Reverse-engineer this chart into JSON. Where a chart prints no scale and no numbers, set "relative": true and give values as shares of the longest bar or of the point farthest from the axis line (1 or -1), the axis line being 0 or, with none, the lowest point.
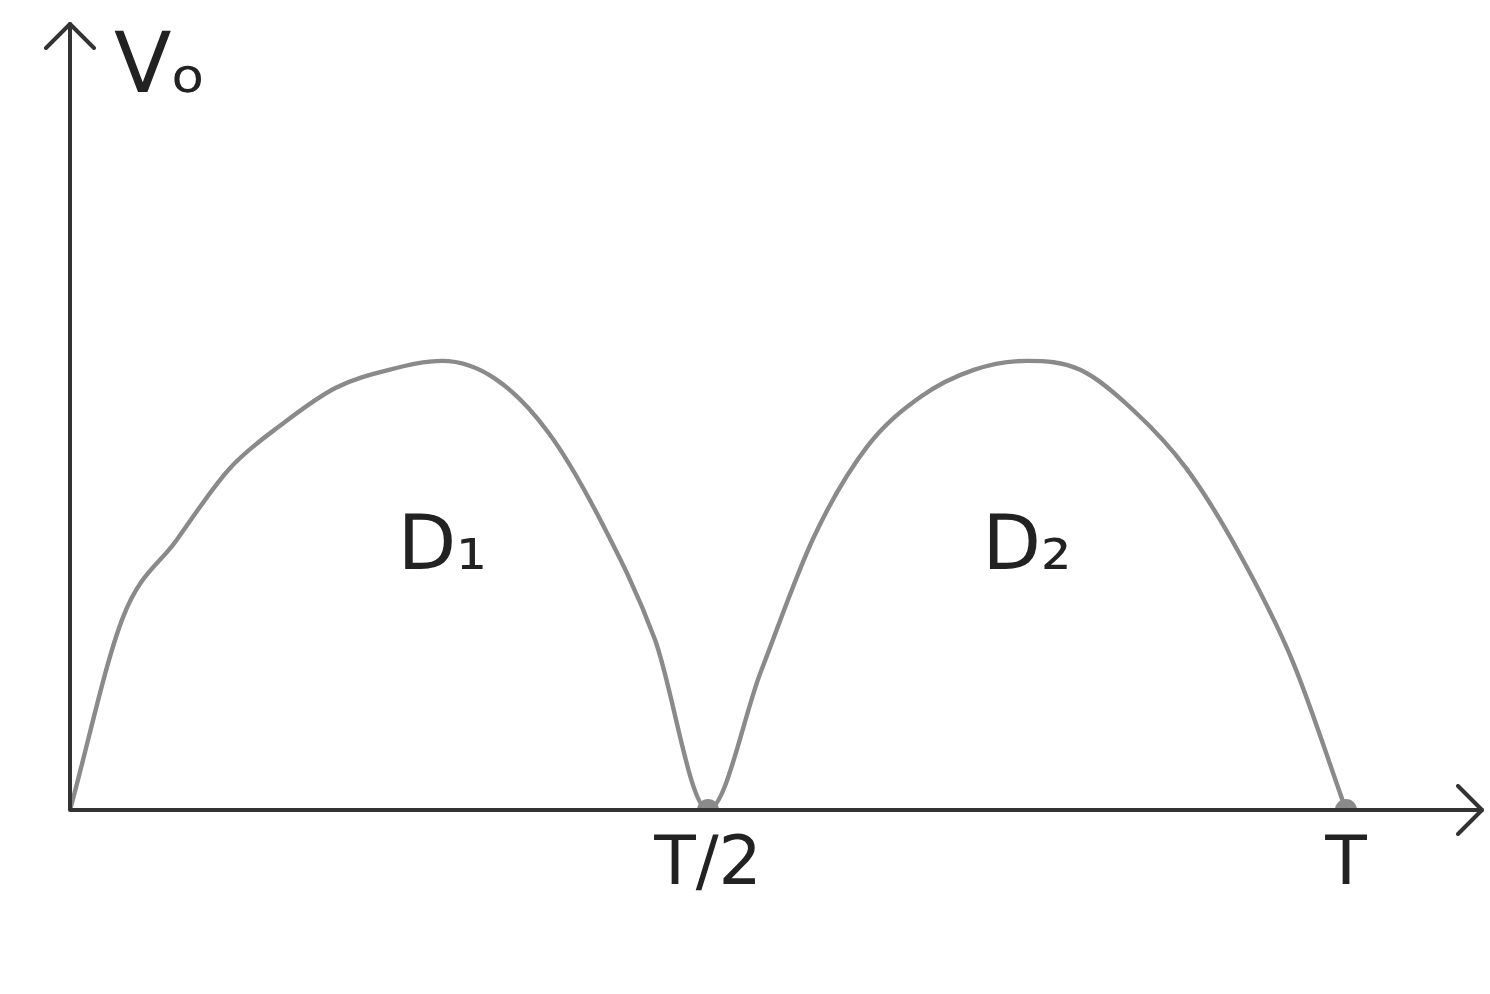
{
  "chart_data": {
    "type": "line",
    "ylabel": "Vₒ",
    "relative": true,
    "marker": "none",
    "line_style": "solid",
    "categories": [
      null,
      null,
      null,
      null,
      null,
      null,
      null,
      null,
      null,
      null,
      null,
      null,
      "T/2",
      null,
      null,
      null,
      null,
      null,
      null,
      null,
      null,
      null,
      null,
      null,
      "T"
    ],
    "series": [
      {
        "color": "#8a8a8a",
        "values": [
          0,
          0.43,
          0.6,
          0.76,
          0.86,
          0.94,
          0.98,
          1,
          0.96,
          0.84,
          0.64,
          0.38,
          0,
          0.31,
          0.61,
          0.81,
          0.92,
          0.98,
          1,
          0.98,
          0.89,
          0.76,
          0.57,
          0.33,
          0
        ]
      },
      {
        "type": "scatter",
        "color": "#8a8a8a",
        "marker": "circle",
        "values": [
          null,
          null,
          null,
          null,
          null,
          null,
          null,
          null,
          null,
          null,
          null,
          null,
          0,
          null,
          null,
          null,
          null,
          null,
          null,
          null,
          null,
          null,
          null,
          null,
          0
        ]
      }
    ],
    "annotations": [
      "D₁",
      "D₂"
    ]
  }
}
